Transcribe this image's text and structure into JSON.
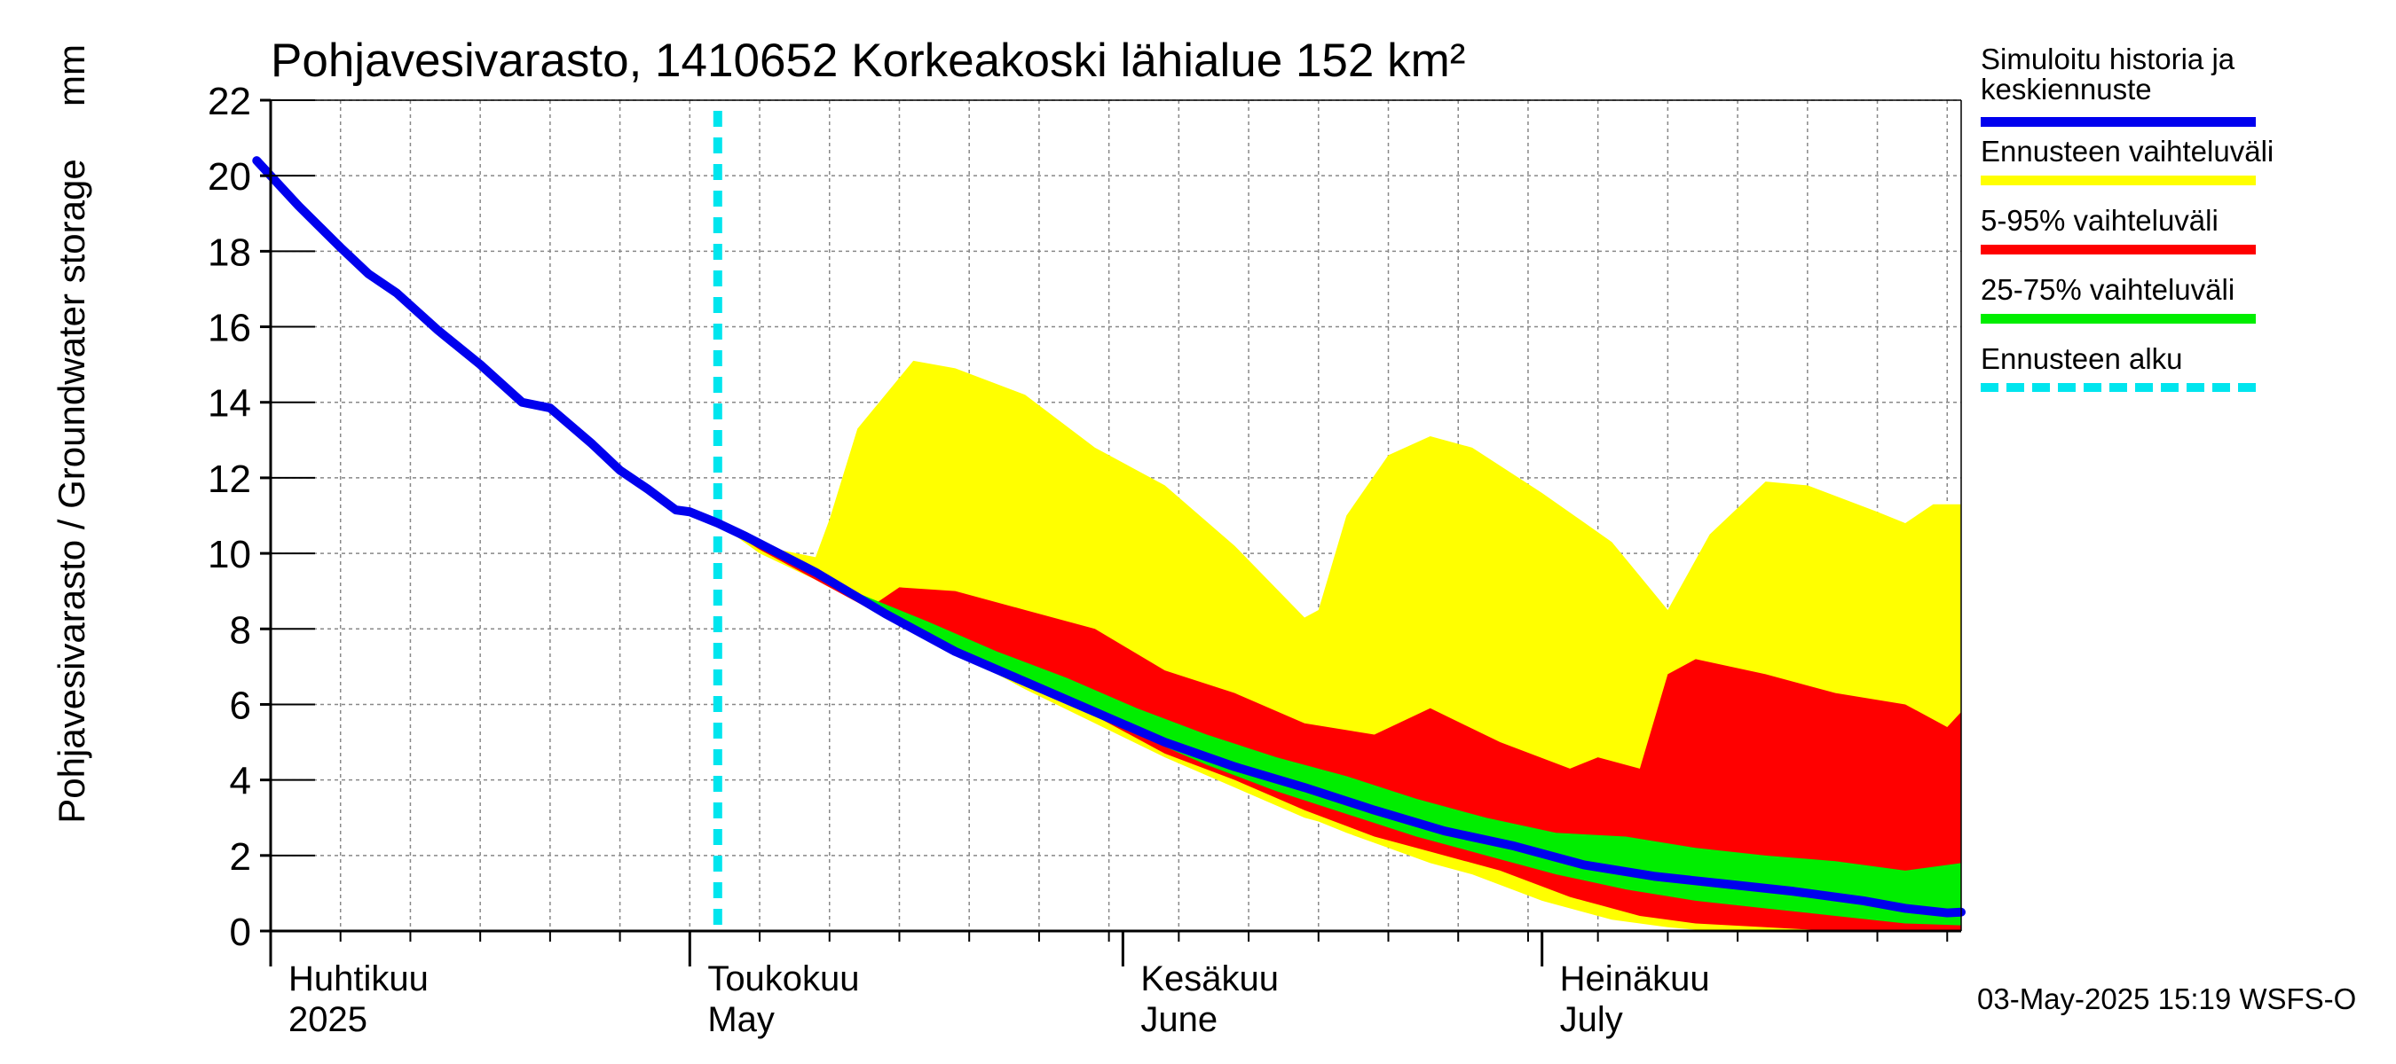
{
  "chart_data": {
    "type": "area",
    "title": "Pohjavesivarasto, 1410652 Korkeakoski lähialue 152 km²",
    "ylabel": "Pohjavesivarasto / Groundwater storage",
    "yunit": "mm",
    "ylim": [
      0,
      22
    ],
    "yticks": [
      0,
      2,
      4,
      6,
      8,
      10,
      12,
      14,
      16,
      18,
      20,
      22
    ],
    "xlim": [
      "2025-04-01",
      "2025-07-31"
    ],
    "grid": true,
    "month_labels": [
      {
        "fi": "Huhtikuu",
        "en": "2025",
        "date": "2025-04-01"
      },
      {
        "fi": "Toukokuu",
        "en": "May",
        "date": "2025-05-01"
      },
      {
        "fi": "Kesäkuu",
        "en": "June",
        "date": "2025-06-01"
      },
      {
        "fi": "Heinäkuu",
        "en": "July",
        "date": "2025-07-01"
      }
    ],
    "forecast_start": "2025-05-03",
    "series": [
      {
        "name": "Simuloitu historia ja keskiennuste",
        "color": "#0000ee",
        "kind": "line",
        "points": [
          [
            "2025-03-31",
            20.4
          ],
          [
            "2025-04-03",
            19.2
          ],
          [
            "2025-04-06",
            18.1
          ],
          [
            "2025-04-08",
            17.4
          ],
          [
            "2025-04-10",
            16.9
          ],
          [
            "2025-04-13",
            15.9
          ],
          [
            "2025-04-16",
            15.0
          ],
          [
            "2025-04-19",
            14.0
          ],
          [
            "2025-04-21",
            13.85
          ],
          [
            "2025-04-24",
            12.9
          ],
          [
            "2025-04-26",
            12.2
          ],
          [
            "2025-04-28",
            11.7
          ],
          [
            "2025-04-30",
            11.15
          ],
          [
            "2025-05-01",
            11.1
          ],
          [
            "2025-05-03",
            10.8
          ],
          [
            "2025-05-05",
            10.45
          ],
          [
            "2025-05-10",
            9.5
          ],
          [
            "2025-05-15",
            8.4
          ],
          [
            "2025-05-20",
            7.4
          ],
          [
            "2025-05-25",
            6.6
          ],
          [
            "2025-05-30",
            5.8
          ],
          [
            "2025-06-04",
            5.0
          ],
          [
            "2025-06-09",
            4.35
          ],
          [
            "2025-06-14",
            3.8
          ],
          [
            "2025-06-19",
            3.2
          ],
          [
            "2025-06-24",
            2.65
          ],
          [
            "2025-06-29",
            2.25
          ],
          [
            "2025-07-04",
            1.75
          ],
          [
            "2025-07-09",
            1.45
          ],
          [
            "2025-07-14",
            1.25
          ],
          [
            "2025-07-19",
            1.05
          ],
          [
            "2025-07-24",
            0.8
          ],
          [
            "2025-07-27",
            0.6
          ],
          [
            "2025-07-30",
            0.48
          ],
          [
            "2025-07-31",
            0.5
          ]
        ]
      },
      {
        "name": "Ennusteen vaihteluväli",
        "color": "#ffff00",
        "kind": "band",
        "points": [
          [
            "2025-05-03",
            10.8,
            10.8
          ],
          [
            "2025-05-06",
            10.0,
            10.2
          ],
          [
            "2025-05-10",
            9.3,
            9.9
          ],
          [
            "2025-05-11",
            9.1,
            10.9
          ],
          [
            "2025-05-13",
            8.8,
            13.3
          ],
          [
            "2025-05-17",
            8.0,
            15.1
          ],
          [
            "2025-05-20",
            7.4,
            14.9
          ],
          [
            "2025-05-25",
            6.4,
            14.2
          ],
          [
            "2025-05-30",
            5.5,
            12.8
          ],
          [
            "2025-06-04",
            4.6,
            11.8
          ],
          [
            "2025-06-09",
            3.8,
            10.2
          ],
          [
            "2025-06-14",
            3.0,
            8.3
          ],
          [
            "2025-06-15",
            2.9,
            8.5
          ],
          [
            "2025-06-17",
            2.6,
            11.0
          ],
          [
            "2025-06-20",
            2.2,
            12.6
          ],
          [
            "2025-06-23",
            1.8,
            13.1
          ],
          [
            "2025-06-26",
            1.5,
            12.8
          ],
          [
            "2025-07-01",
            0.8,
            11.6
          ],
          [
            "2025-07-06",
            0.3,
            10.3
          ],
          [
            "2025-07-10",
            0.1,
            8.5
          ],
          [
            "2025-07-13",
            0.0,
            10.5
          ],
          [
            "2025-07-17",
            0.0,
            11.9
          ],
          [
            "2025-07-20",
            0.0,
            11.8
          ],
          [
            "2025-07-25",
            0.0,
            11.1
          ],
          [
            "2025-07-27",
            0.0,
            10.8
          ],
          [
            "2025-07-29",
            0.0,
            11.3
          ],
          [
            "2025-07-31",
            0.0,
            11.3
          ]
        ]
      },
      {
        "name": "5-95% vaihteluväli",
        "color": "#ff0000",
        "kind": "band",
        "points": [
          [
            "2025-05-03",
            10.8,
            10.8
          ],
          [
            "2025-05-06",
            10.1,
            10.3
          ],
          [
            "2025-05-10",
            9.3,
            9.6
          ],
          [
            "2025-05-14",
            8.5,
            8.6
          ],
          [
            "2025-05-16",
            8.2,
            9.1
          ],
          [
            "2025-05-20",
            7.6,
            9.0
          ],
          [
            "2025-05-25",
            6.7,
            8.5
          ],
          [
            "2025-05-30",
            5.7,
            8.0
          ],
          [
            "2025-06-04",
            4.7,
            6.9
          ],
          [
            "2025-06-09",
            4.0,
            6.3
          ],
          [
            "2025-06-14",
            3.2,
            5.5
          ],
          [
            "2025-06-19",
            2.5,
            5.2
          ],
          [
            "2025-06-23",
            2.1,
            5.9
          ],
          [
            "2025-06-28",
            1.6,
            5.0
          ],
          [
            "2025-07-03",
            0.9,
            4.3
          ],
          [
            "2025-07-05",
            0.7,
            4.6
          ],
          [
            "2025-07-08",
            0.4,
            4.3
          ],
          [
            "2025-07-10",
            0.3,
            6.8
          ],
          [
            "2025-07-12",
            0.2,
            7.2
          ],
          [
            "2025-07-17",
            0.1,
            6.8
          ],
          [
            "2025-07-22",
            0.0,
            6.3
          ],
          [
            "2025-07-27",
            0.0,
            6.0
          ],
          [
            "2025-07-30",
            0.0,
            5.4
          ],
          [
            "2025-07-31",
            0.0,
            5.8
          ]
        ]
      },
      {
        "name": "25-75% vaihteluväli",
        "color": "#00ee00",
        "kind": "band",
        "points": [
          [
            "2025-05-03",
            10.8,
            10.8
          ],
          [
            "2025-05-08",
            9.9,
            9.9
          ],
          [
            "2025-05-13",
            8.8,
            8.95
          ],
          [
            "2025-05-18",
            7.8,
            8.2
          ],
          [
            "2025-05-23",
            6.9,
            7.4
          ],
          [
            "2025-05-28",
            6.0,
            6.7
          ],
          [
            "2025-06-02",
            5.2,
            5.9
          ],
          [
            "2025-06-07",
            4.4,
            5.2
          ],
          [
            "2025-06-12",
            3.7,
            4.6
          ],
          [
            "2025-06-17",
            3.1,
            4.1
          ],
          [
            "2025-06-22",
            2.5,
            3.5
          ],
          [
            "2025-06-27",
            2.0,
            3.0
          ],
          [
            "2025-07-02",
            1.5,
            2.6
          ],
          [
            "2025-07-07",
            1.1,
            2.5
          ],
          [
            "2025-07-12",
            0.8,
            2.2
          ],
          [
            "2025-07-17",
            0.6,
            2.0
          ],
          [
            "2025-07-22",
            0.4,
            1.85
          ],
          [
            "2025-07-27",
            0.2,
            1.6
          ],
          [
            "2025-07-31",
            0.15,
            1.8
          ]
        ]
      }
    ],
    "legend": [
      {
        "label": "Simuloitu historia ja\nkeskiennuste",
        "color": "#0000ee",
        "style": "solid"
      },
      {
        "label": "Ennusteen vaihteluväli",
        "color": "#ffff00",
        "style": "solid"
      },
      {
        "label": "5-95% vaihteluväli",
        "color": "#ff0000",
        "style": "solid"
      },
      {
        "label": "25-75% vaihteluväli",
        "color": "#00ee00",
        "style": "solid"
      },
      {
        "label": "Ennusteen alku",
        "color": "#00e5ee",
        "style": "dashed"
      }
    ],
    "footer": "03-May-2025 15:19 WSFS-O"
  }
}
